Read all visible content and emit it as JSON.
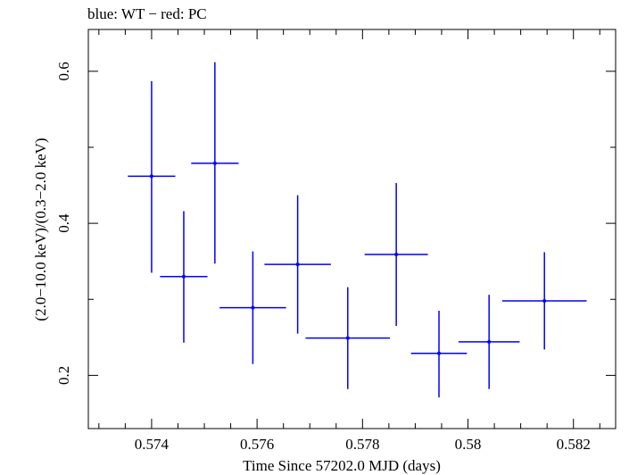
{
  "chart_data": {
    "type": "scatter",
    "title": "blue: WT − red: PC",
    "xlabel": "Time Since 57202.0 MJD (days)",
    "ylabel": "(2.0−10.0 keV)/(0.3−2.0 keV)",
    "xlim": [
      0.5728,
      0.5828
    ],
    "ylim": [
      0.13,
      0.655
    ],
    "x_major_ticks": [
      0.574,
      0.576,
      0.578,
      0.58,
      0.582
    ],
    "x_tick_labels": [
      "0.574",
      "0.576",
      "0.578",
      "0.58",
      "0.582"
    ],
    "y_major_ticks": [
      0.2,
      0.4,
      0.6
    ],
    "y_tick_labels": [
      "0.2",
      "0.4",
      "0.6"
    ],
    "grid": false,
    "legend": "none",
    "series": [
      {
        "color": "#0000ff",
        "points": [
          {
            "x": 0.574,
            "y": 0.462,
            "xerr": 0.00045,
            "yerr_low": 0.127,
            "yerr_high": 0.125
          },
          {
            "x": 0.57461,
            "y": 0.33,
            "xerr": 0.00045,
            "yerr_low": 0.087,
            "yerr_high": 0.086
          },
          {
            "x": 0.5752,
            "y": 0.479,
            "xerr": 0.00045,
            "yerr_low": 0.132,
            "yerr_high": 0.133
          },
          {
            "x": 0.57592,
            "y": 0.289,
            "xerr": 0.00063,
            "yerr_low": 0.074,
            "yerr_high": 0.074
          },
          {
            "x": 0.57677,
            "y": 0.346,
            "xerr": 0.00063,
            "yerr_low": 0.091,
            "yerr_high": 0.091
          },
          {
            "x": 0.57772,
            "y": 0.249,
            "xerr": 0.0008,
            "yerr_low": 0.067,
            "yerr_high": 0.067
          },
          {
            "x": 0.57864,
            "y": 0.359,
            "xerr": 0.0006,
            "yerr_low": 0.094,
            "yerr_high": 0.094
          },
          {
            "x": 0.57945,
            "y": 0.229,
            "xerr": 0.00053,
            "yerr_low": 0.058,
            "yerr_high": 0.056
          },
          {
            "x": 0.5804,
            "y": 0.244,
            "xerr": 0.00058,
            "yerr_low": 0.062,
            "yerr_high": 0.062
          },
          {
            "x": 0.58145,
            "y": 0.298,
            "xerr": 0.0008,
            "yerr_low": 0.064,
            "yerr_high": 0.064
          }
        ]
      }
    ]
  }
}
